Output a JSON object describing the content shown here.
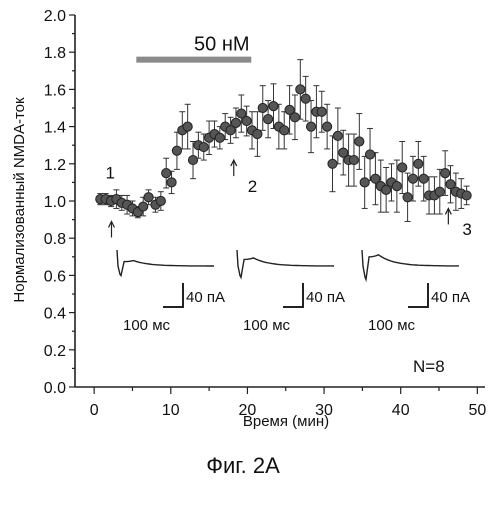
{
  "chart_data": {
    "type": "scatter",
    "xlabel": "Время (мин)",
    "ylabel": "Нормализованный NMDA-ток",
    "caption": "Фиг. 2A",
    "xlim": [
      -2.5,
      51
    ],
    "ylim": [
      0.0,
      2.0
    ],
    "x_ticks": [
      0,
      10,
      20,
      30,
      40,
      50
    ],
    "y_ticks": [
      "0.0",
      "0.2",
      "0.4",
      "0.6",
      "0.8",
      "1.0",
      "1.2",
      "1.4",
      "1.6",
      "1.8",
      "2.0"
    ],
    "bar": {
      "label": "50 нМ",
      "x_start": 5.5,
      "x_end": 20.5,
      "y": 1.76
    },
    "n_label": "N=8",
    "markers": [
      {
        "label": "1",
        "x": 2,
        "y_label": 1.12,
        "y_arrow": 0.85
      },
      {
        "label": "2",
        "x": 19,
        "y_label": 1.08,
        "y_arrow": 1.22
      },
      {
        "label": "3",
        "x": 47,
        "y_label": 0.85,
        "y_arrow": 0.96
      }
    ],
    "traces": [
      {
        "x_ms": "100 мс",
        "y_pA": "40 пА"
      },
      {
        "x_ms": "100 мс",
        "y_pA": "40 пА"
      },
      {
        "x_ms": "100 мс",
        "y_pA": "40 пА"
      }
    ],
    "points": [
      {
        "x": 0.8,
        "y": 1.01,
        "e": 0.03
      },
      {
        "x": 1.5,
        "y": 1.01,
        "e": 0.03
      },
      {
        "x": 2.2,
        "y": 1.0,
        "e": 0.03
      },
      {
        "x": 2.9,
        "y": 1.01,
        "e": 0.05
      },
      {
        "x": 3.6,
        "y": 0.99,
        "e": 0.04
      },
      {
        "x": 4.3,
        "y": 0.98,
        "e": 0.05
      },
      {
        "x": 5.0,
        "y": 0.96,
        "e": 0.04
      },
      {
        "x": 5.7,
        "y": 0.94,
        "e": 0.03
      },
      {
        "x": 6.4,
        "y": 0.97,
        "e": 0.05
      },
      {
        "x": 7.1,
        "y": 1.02,
        "e": 0.04
      },
      {
        "x": 8.0,
        "y": 0.98,
        "e": 0.04
      },
      {
        "x": 8.7,
        "y": 1.0,
        "e": 0.05
      },
      {
        "x": 9.4,
        "y": 1.15,
        "e": 0.08
      },
      {
        "x": 10.1,
        "y": 1.1,
        "e": 0.06
      },
      {
        "x": 10.8,
        "y": 1.27,
        "e": 0.1
      },
      {
        "x": 11.5,
        "y": 1.38,
        "e": 0.1
      },
      {
        "x": 12.2,
        "y": 1.4,
        "e": 0.12
      },
      {
        "x": 12.9,
        "y": 1.22,
        "e": 0.1
      },
      {
        "x": 13.6,
        "y": 1.3,
        "e": 0.07
      },
      {
        "x": 14.3,
        "y": 1.29,
        "e": 0.07
      },
      {
        "x": 15.0,
        "y": 1.34,
        "e": 0.09
      },
      {
        "x": 15.7,
        "y": 1.36,
        "e": 0.07
      },
      {
        "x": 16.4,
        "y": 1.34,
        "e": 0.06
      },
      {
        "x": 17.1,
        "y": 1.4,
        "e": 0.07
      },
      {
        "x": 17.8,
        "y": 1.38,
        "e": 0.07
      },
      {
        "x": 18.5,
        "y": 1.42,
        "e": 0.08
      },
      {
        "x": 19.2,
        "y": 1.47,
        "e": 0.1
      },
      {
        "x": 19.9,
        "y": 1.43,
        "e": 0.08
      },
      {
        "x": 20.6,
        "y": 1.38,
        "e": 0.1
      },
      {
        "x": 21.3,
        "y": 1.36,
        "e": 0.12
      },
      {
        "x": 22.0,
        "y": 1.5,
        "e": 0.12
      },
      {
        "x": 22.7,
        "y": 1.44,
        "e": 0.1
      },
      {
        "x": 23.4,
        "y": 1.51,
        "e": 0.12
      },
      {
        "x": 24.1,
        "y": 1.4,
        "e": 0.12
      },
      {
        "x": 24.8,
        "y": 1.38,
        "e": 0.1
      },
      {
        "x": 25.5,
        "y": 1.49,
        "e": 0.13
      },
      {
        "x": 26.2,
        "y": 1.45,
        "e": 0.12
      },
      {
        "x": 26.9,
        "y": 1.6,
        "e": 0.16
      },
      {
        "x": 27.6,
        "y": 1.55,
        "e": 0.12
      },
      {
        "x": 28.3,
        "y": 1.4,
        "e": 0.14
      },
      {
        "x": 29.0,
        "y": 1.48,
        "e": 0.14
      },
      {
        "x": 29.7,
        "y": 1.48,
        "e": 0.11
      },
      {
        "x": 30.4,
        "y": 1.4,
        "e": 0.12
      },
      {
        "x": 31.1,
        "y": 1.2,
        "e": 0.15
      },
      {
        "x": 31.8,
        "y": 1.35,
        "e": 0.15
      },
      {
        "x": 32.5,
        "y": 1.26,
        "e": 0.12
      },
      {
        "x": 33.2,
        "y": 1.22,
        "e": 0.14
      },
      {
        "x": 33.9,
        "y": 1.22,
        "e": 0.14
      },
      {
        "x": 34.6,
        "y": 1.32,
        "e": 0.15
      },
      {
        "x": 35.3,
        "y": 1.1,
        "e": 0.14
      },
      {
        "x": 36.0,
        "y": 1.25,
        "e": 0.14
      },
      {
        "x": 36.7,
        "y": 1.12,
        "e": 0.14
      },
      {
        "x": 37.4,
        "y": 1.08,
        "e": 0.14
      },
      {
        "x": 38.1,
        "y": 1.06,
        "e": 0.12
      },
      {
        "x": 38.8,
        "y": 1.1,
        "e": 0.1
      },
      {
        "x": 39.5,
        "y": 1.08,
        "e": 0.14
      },
      {
        "x": 40.2,
        "y": 1.18,
        "e": 0.14
      },
      {
        "x": 40.9,
        "y": 1.02,
        "e": 0.13
      },
      {
        "x": 41.6,
        "y": 1.12,
        "e": 0.12
      },
      {
        "x": 42.3,
        "y": 1.2,
        "e": 0.12
      },
      {
        "x": 43.0,
        "y": 1.12,
        "e": 0.12
      },
      {
        "x": 43.7,
        "y": 1.03,
        "e": 0.1
      },
      {
        "x": 44.4,
        "y": 1.03,
        "e": 0.1
      },
      {
        "x": 45.1,
        "y": 1.05,
        "e": 0.12
      },
      {
        "x": 45.8,
        "y": 1.15,
        "e": 0.12
      },
      {
        "x": 46.5,
        "y": 1.09,
        "e": 0.1
      },
      {
        "x": 47.2,
        "y": 1.05,
        "e": 0.1
      },
      {
        "x": 47.9,
        "y": 1.04,
        "e": 0.08
      },
      {
        "x": 48.6,
        "y": 1.03,
        "e": 0.05
      }
    ]
  }
}
